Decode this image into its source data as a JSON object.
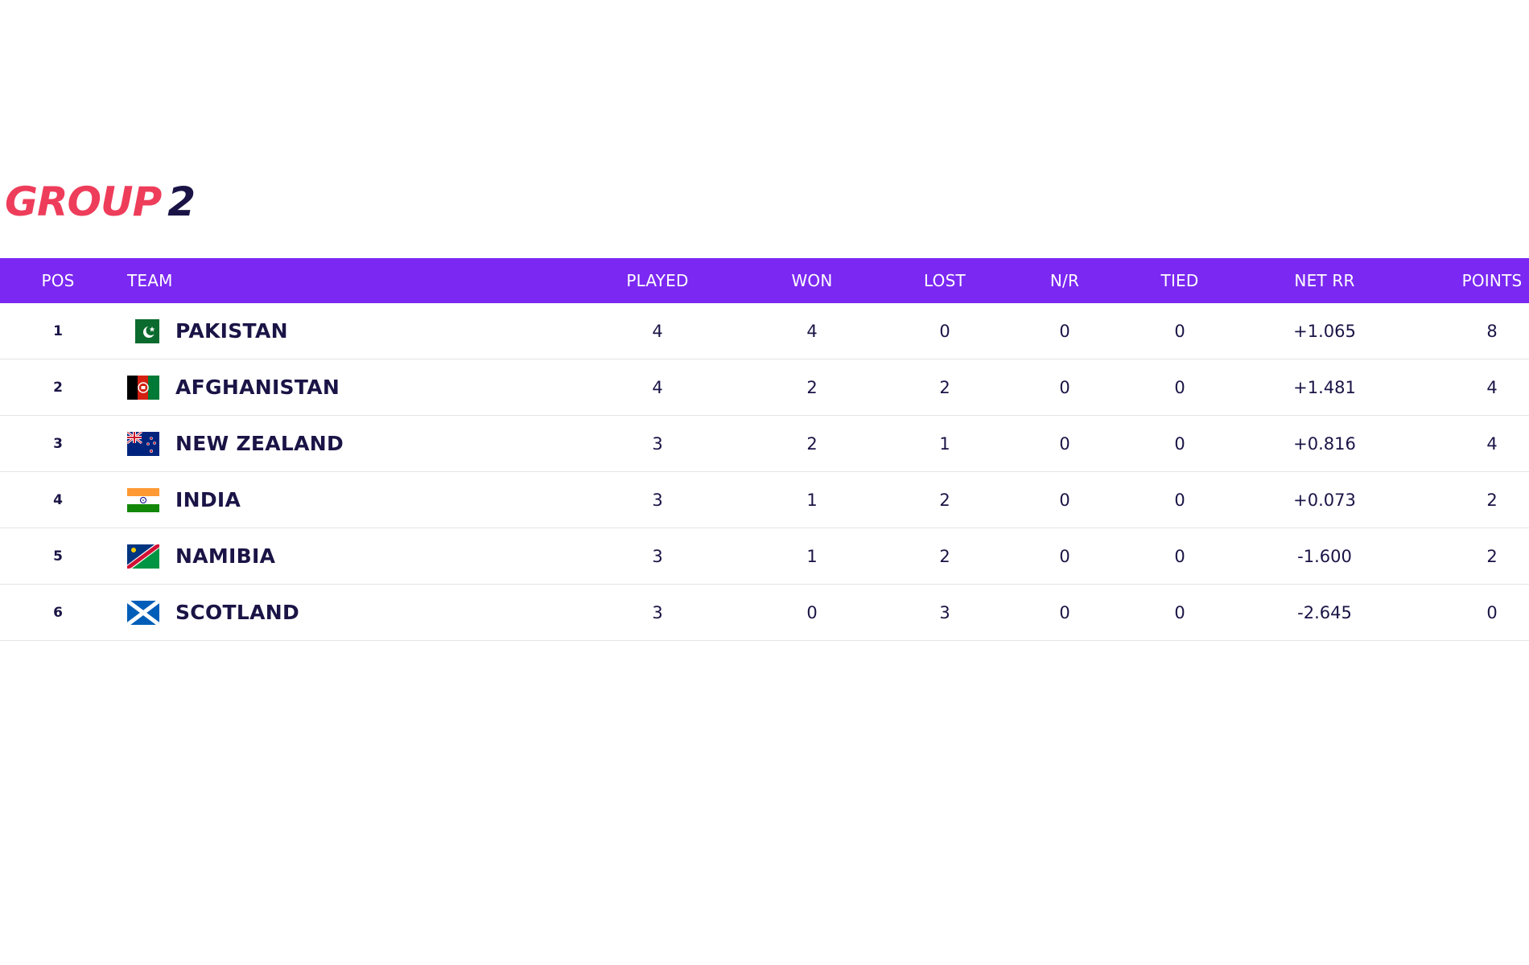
{
  "group": {
    "word": "GROUP",
    "number": "2"
  },
  "columns": {
    "pos": "POS",
    "team": "TEAM",
    "played": "PLAYED",
    "won": "WON",
    "lost": "LOST",
    "nr": "N/R",
    "tied": "TIED",
    "net_rr": "NET RR",
    "points": "POINTS"
  },
  "rows": [
    {
      "pos": "1",
      "team": "PAKISTAN",
      "flag": "pakistan-flag-icon",
      "played": "4",
      "won": "4",
      "lost": "0",
      "nr": "0",
      "tied": "0",
      "net_rr": "+1.065",
      "points": "8"
    },
    {
      "pos": "2",
      "team": "AFGHANISTAN",
      "flag": "afghanistan-flag-icon",
      "played": "4",
      "won": "2",
      "lost": "2",
      "nr": "0",
      "tied": "0",
      "net_rr": "+1.481",
      "points": "4"
    },
    {
      "pos": "3",
      "team": "NEW ZEALAND",
      "flag": "new-zealand-flag-icon",
      "played": "3",
      "won": "2",
      "lost": "1",
      "nr": "0",
      "tied": "0",
      "net_rr": "+0.816",
      "points": "4"
    },
    {
      "pos": "4",
      "team": "INDIA",
      "flag": "india-flag-icon",
      "played": "3",
      "won": "1",
      "lost": "2",
      "nr": "0",
      "tied": "0",
      "net_rr": "+0.073",
      "points": "2"
    },
    {
      "pos": "5",
      "team": "NAMIBIA",
      "flag": "namibia-flag-icon",
      "played": "3",
      "won": "1",
      "lost": "2",
      "nr": "0",
      "tied": "0",
      "net_rr": "-1.600",
      "points": "2"
    },
    {
      "pos": "6",
      "team": "SCOTLAND",
      "flag": "scotland-flag-icon",
      "played": "3",
      "won": "0",
      "lost": "3",
      "nr": "0",
      "tied": "0",
      "net_rr": "-2.645",
      "points": "0"
    }
  ],
  "colors": {
    "header_bg": "#7b28f2",
    "title_accent": "#ee3d5a",
    "text_dark": "#1a1446"
  }
}
